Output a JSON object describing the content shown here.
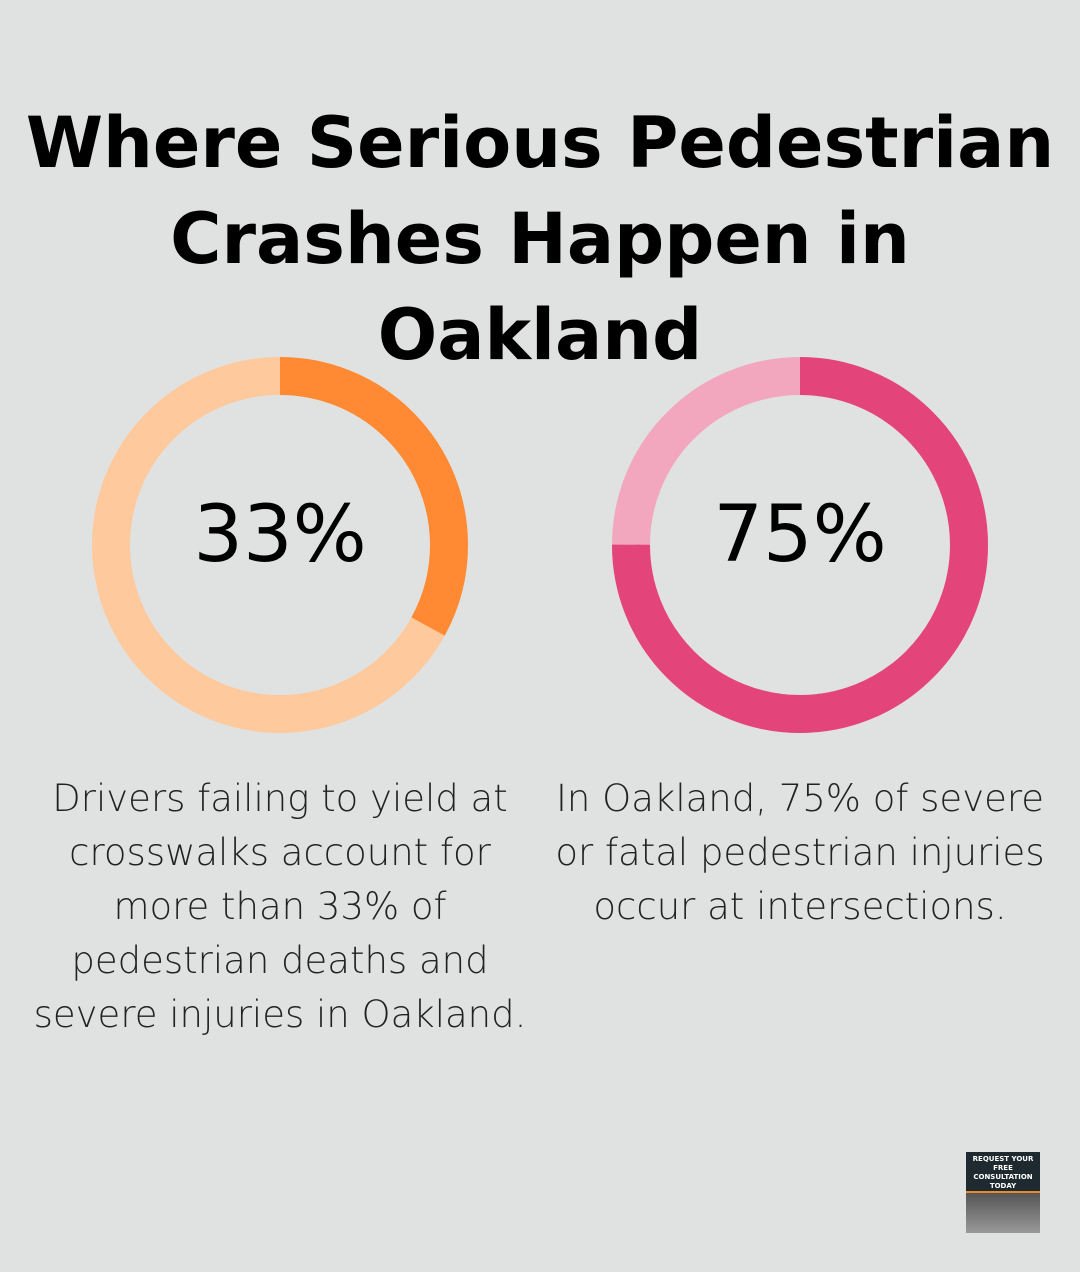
{
  "title": "Where Serious Pedestrian Crashes Happen in Oakland",
  "chart_data": [
    {
      "type": "pie",
      "variant": "donut",
      "value": 33,
      "label": "33%",
      "description": "Drivers failing to yield at crosswalks account for more than 33% of pedestrian deaths and severe injuries in Oakland.",
      "colors": {
        "filled": "#ff8a33",
        "remaining": "#ffc99e"
      }
    },
    {
      "type": "pie",
      "variant": "donut",
      "value": 75,
      "label": "75%",
      "description": "In Oakland, 75% of severe or fatal pedestrian injuries occur at intersections.",
      "colors": {
        "filled": "#e3447a",
        "remaining": "#f2a7be"
      }
    }
  ],
  "badge": {
    "text": "REQUEST YOUR FREE CONSULTATION TODAY"
  }
}
